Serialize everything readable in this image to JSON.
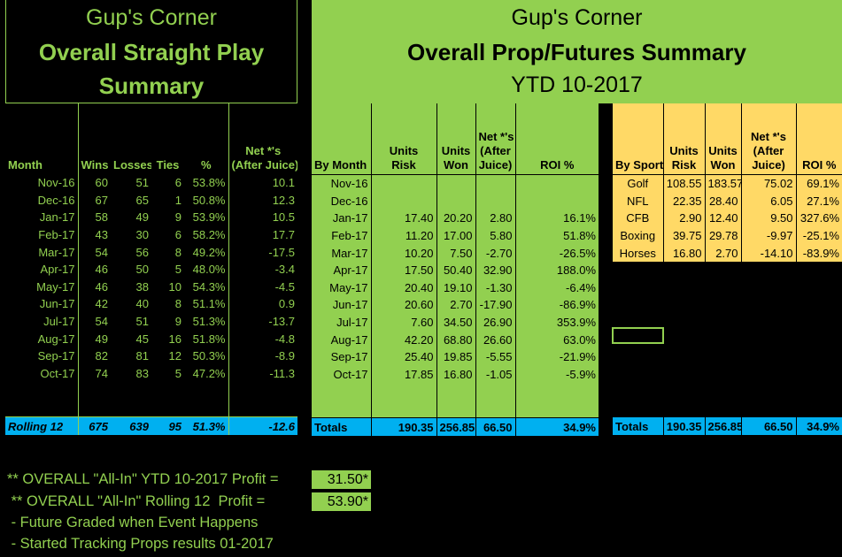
{
  "left": {
    "title_1": "Gup's Corner",
    "title_2": "Overall Straight Play",
    "title_3": "Summary",
    "headers": {
      "month": "Month",
      "wins": "Wins",
      "losses": "Losses",
      "ties": "Ties",
      "pct": "%",
      "net_1": "Net *'s",
      "net_2": "(After Juice)"
    },
    "rows": [
      {
        "month": "Nov-16",
        "wins": "60",
        "losses": "51",
        "ties": "6",
        "pct": "53.8%",
        "net": "10.1"
      },
      {
        "month": "Dec-16",
        "wins": "67",
        "losses": "65",
        "ties": "1",
        "pct": "50.8%",
        "net": "12.3"
      },
      {
        "month": "Jan-17",
        "wins": "58",
        "losses": "49",
        "ties": "9",
        "pct": "53.9%",
        "net": "10.5"
      },
      {
        "month": "Feb-17",
        "wins": "43",
        "losses": "30",
        "ties": "6",
        "pct": "58.2%",
        "net": "17.7"
      },
      {
        "month": "Mar-17",
        "wins": "54",
        "losses": "56",
        "ties": "8",
        "pct": "49.2%",
        "net": "-17.5"
      },
      {
        "month": "Apr-17",
        "wins": "46",
        "losses": "50",
        "ties": "5",
        "pct": "48.0%",
        "net": "-3.4"
      },
      {
        "month": "May-17",
        "wins": "46",
        "losses": "38",
        "ties": "10",
        "pct": "54.3%",
        "net": "-4.5"
      },
      {
        "month": "Jun-17",
        "wins": "42",
        "losses": "40",
        "ties": "8",
        "pct": "51.1%",
        "net": "0.9"
      },
      {
        "month": "Jul-17",
        "wins": "54",
        "losses": "51",
        "ties": "9",
        "pct": "51.3%",
        "net": "-13.7"
      },
      {
        "month": "Aug-17",
        "wins": "49",
        "losses": "45",
        "ties": "16",
        "pct": "51.8%",
        "net": "-4.8"
      },
      {
        "month": "Sep-17",
        "wins": "82",
        "losses": "81",
        "ties": "12",
        "pct": "50.3%",
        "net": "-8.9"
      },
      {
        "month": "Oct-17",
        "wins": "74",
        "losses": "83",
        "ties": "5",
        "pct": "47.2%",
        "net": "-11.3"
      }
    ],
    "total": {
      "label": "Rolling 12",
      "wins": "675",
      "losses": "639",
      "ties": "95",
      "pct": "51.3%",
      "net": "-12.6"
    }
  },
  "mid": {
    "title_1": "Gup's Corner",
    "title_2": "Overall Prop/Futures Summary",
    "title_3": "YTD 10-2017",
    "headers": {
      "month": "By Month",
      "risk_1": "Units",
      "risk_2": "Risk",
      "won_1": "Units",
      "won_2": "Won",
      "net_1": "Net *'s",
      "net_2": "(After",
      "net_3": "Juice)",
      "roi": "ROI %"
    },
    "rows": [
      {
        "month": "Nov-16",
        "risk": "",
        "won": "",
        "net": "",
        "roi": ""
      },
      {
        "month": "Dec-16",
        "risk": "",
        "won": "",
        "net": "",
        "roi": ""
      },
      {
        "month": "Jan-17",
        "risk": "17.40",
        "won": "20.20",
        "net": "2.80",
        "roi": "16.1%"
      },
      {
        "month": "Feb-17",
        "risk": "11.20",
        "won": "17.00",
        "net": "5.80",
        "roi": "51.8%"
      },
      {
        "month": "Mar-17",
        "risk": "10.20",
        "won": "7.50",
        "net": "-2.70",
        "roi": "-26.5%"
      },
      {
        "month": "Apr-17",
        "risk": "17.50",
        "won": "50.40",
        "net": "32.90",
        "roi": "188.0%"
      },
      {
        "month": "May-17",
        "risk": "20.40",
        "won": "19.10",
        "net": "-1.30",
        "roi": "-6.4%"
      },
      {
        "month": "Jun-17",
        "risk": "20.60",
        "won": "2.70",
        "net": "-17.90",
        "roi": "-86.9%"
      },
      {
        "month": "Jul-17",
        "risk": "7.60",
        "won": "34.50",
        "net": "26.90",
        "roi": "353.9%"
      },
      {
        "month": "Aug-17",
        "risk": "42.20",
        "won": "68.80",
        "net": "26.60",
        "roi": "63.0%"
      },
      {
        "month": "Sep-17",
        "risk": "25.40",
        "won": "19.85",
        "net": "-5.55",
        "roi": "-21.9%"
      },
      {
        "month": "Oct-17",
        "risk": "17.85",
        "won": "16.80",
        "net": "-1.05",
        "roi": "-5.9%"
      }
    ],
    "total": {
      "label": "Totals",
      "risk": "190.35",
      "won": "256.85",
      "net": "66.50",
      "roi": "34.9%"
    }
  },
  "right": {
    "headers": {
      "sport": "By Sport",
      "risk_1": "Units",
      "risk_2": "Risk",
      "won_1": "Units",
      "won_2": "Won",
      "net_1": "Net *'s",
      "net_2": "(After",
      "net_3": "Juice)",
      "roi": "ROI %"
    },
    "rows": [
      {
        "sport": "Golf",
        "risk": "108.55",
        "won": "183.57",
        "net": "75.02",
        "roi": "69.1%"
      },
      {
        "sport": "NFL",
        "risk": "22.35",
        "won": "28.40",
        "net": "6.05",
        "roi": "27.1%"
      },
      {
        "sport": "CFB",
        "risk": "2.90",
        "won": "12.40",
        "net": "9.50",
        "roi": "327.6%"
      },
      {
        "sport": "Boxing",
        "risk": "39.75",
        "won": "29.78",
        "net": "-9.97",
        "roi": "-25.1%"
      },
      {
        "sport": "Horses",
        "risk": "16.80",
        "won": "2.70",
        "net": "-14.10",
        "roi": "-83.9%"
      }
    ],
    "total": {
      "label": "Totals",
      "risk": "190.35",
      "won": "256.85",
      "net": "66.50",
      "roi": "34.9%"
    }
  },
  "footer": {
    "line_1": "** OVERALL \"All-In\" YTD 10-2017 Profit =",
    "value_1": "31.50*",
    "line_2": " ** OVERALL \"All-In\" Rolling 12  Profit =",
    "value_2": "53.90*",
    "line_3": " - Future Graded when Event Happens",
    "line_4": " - Started Tracking Props results 01-2017"
  },
  "colors": {
    "green": "#92d050",
    "blue": "#00b0f0",
    "yellow": "#ffd966",
    "background": "#000000"
  }
}
